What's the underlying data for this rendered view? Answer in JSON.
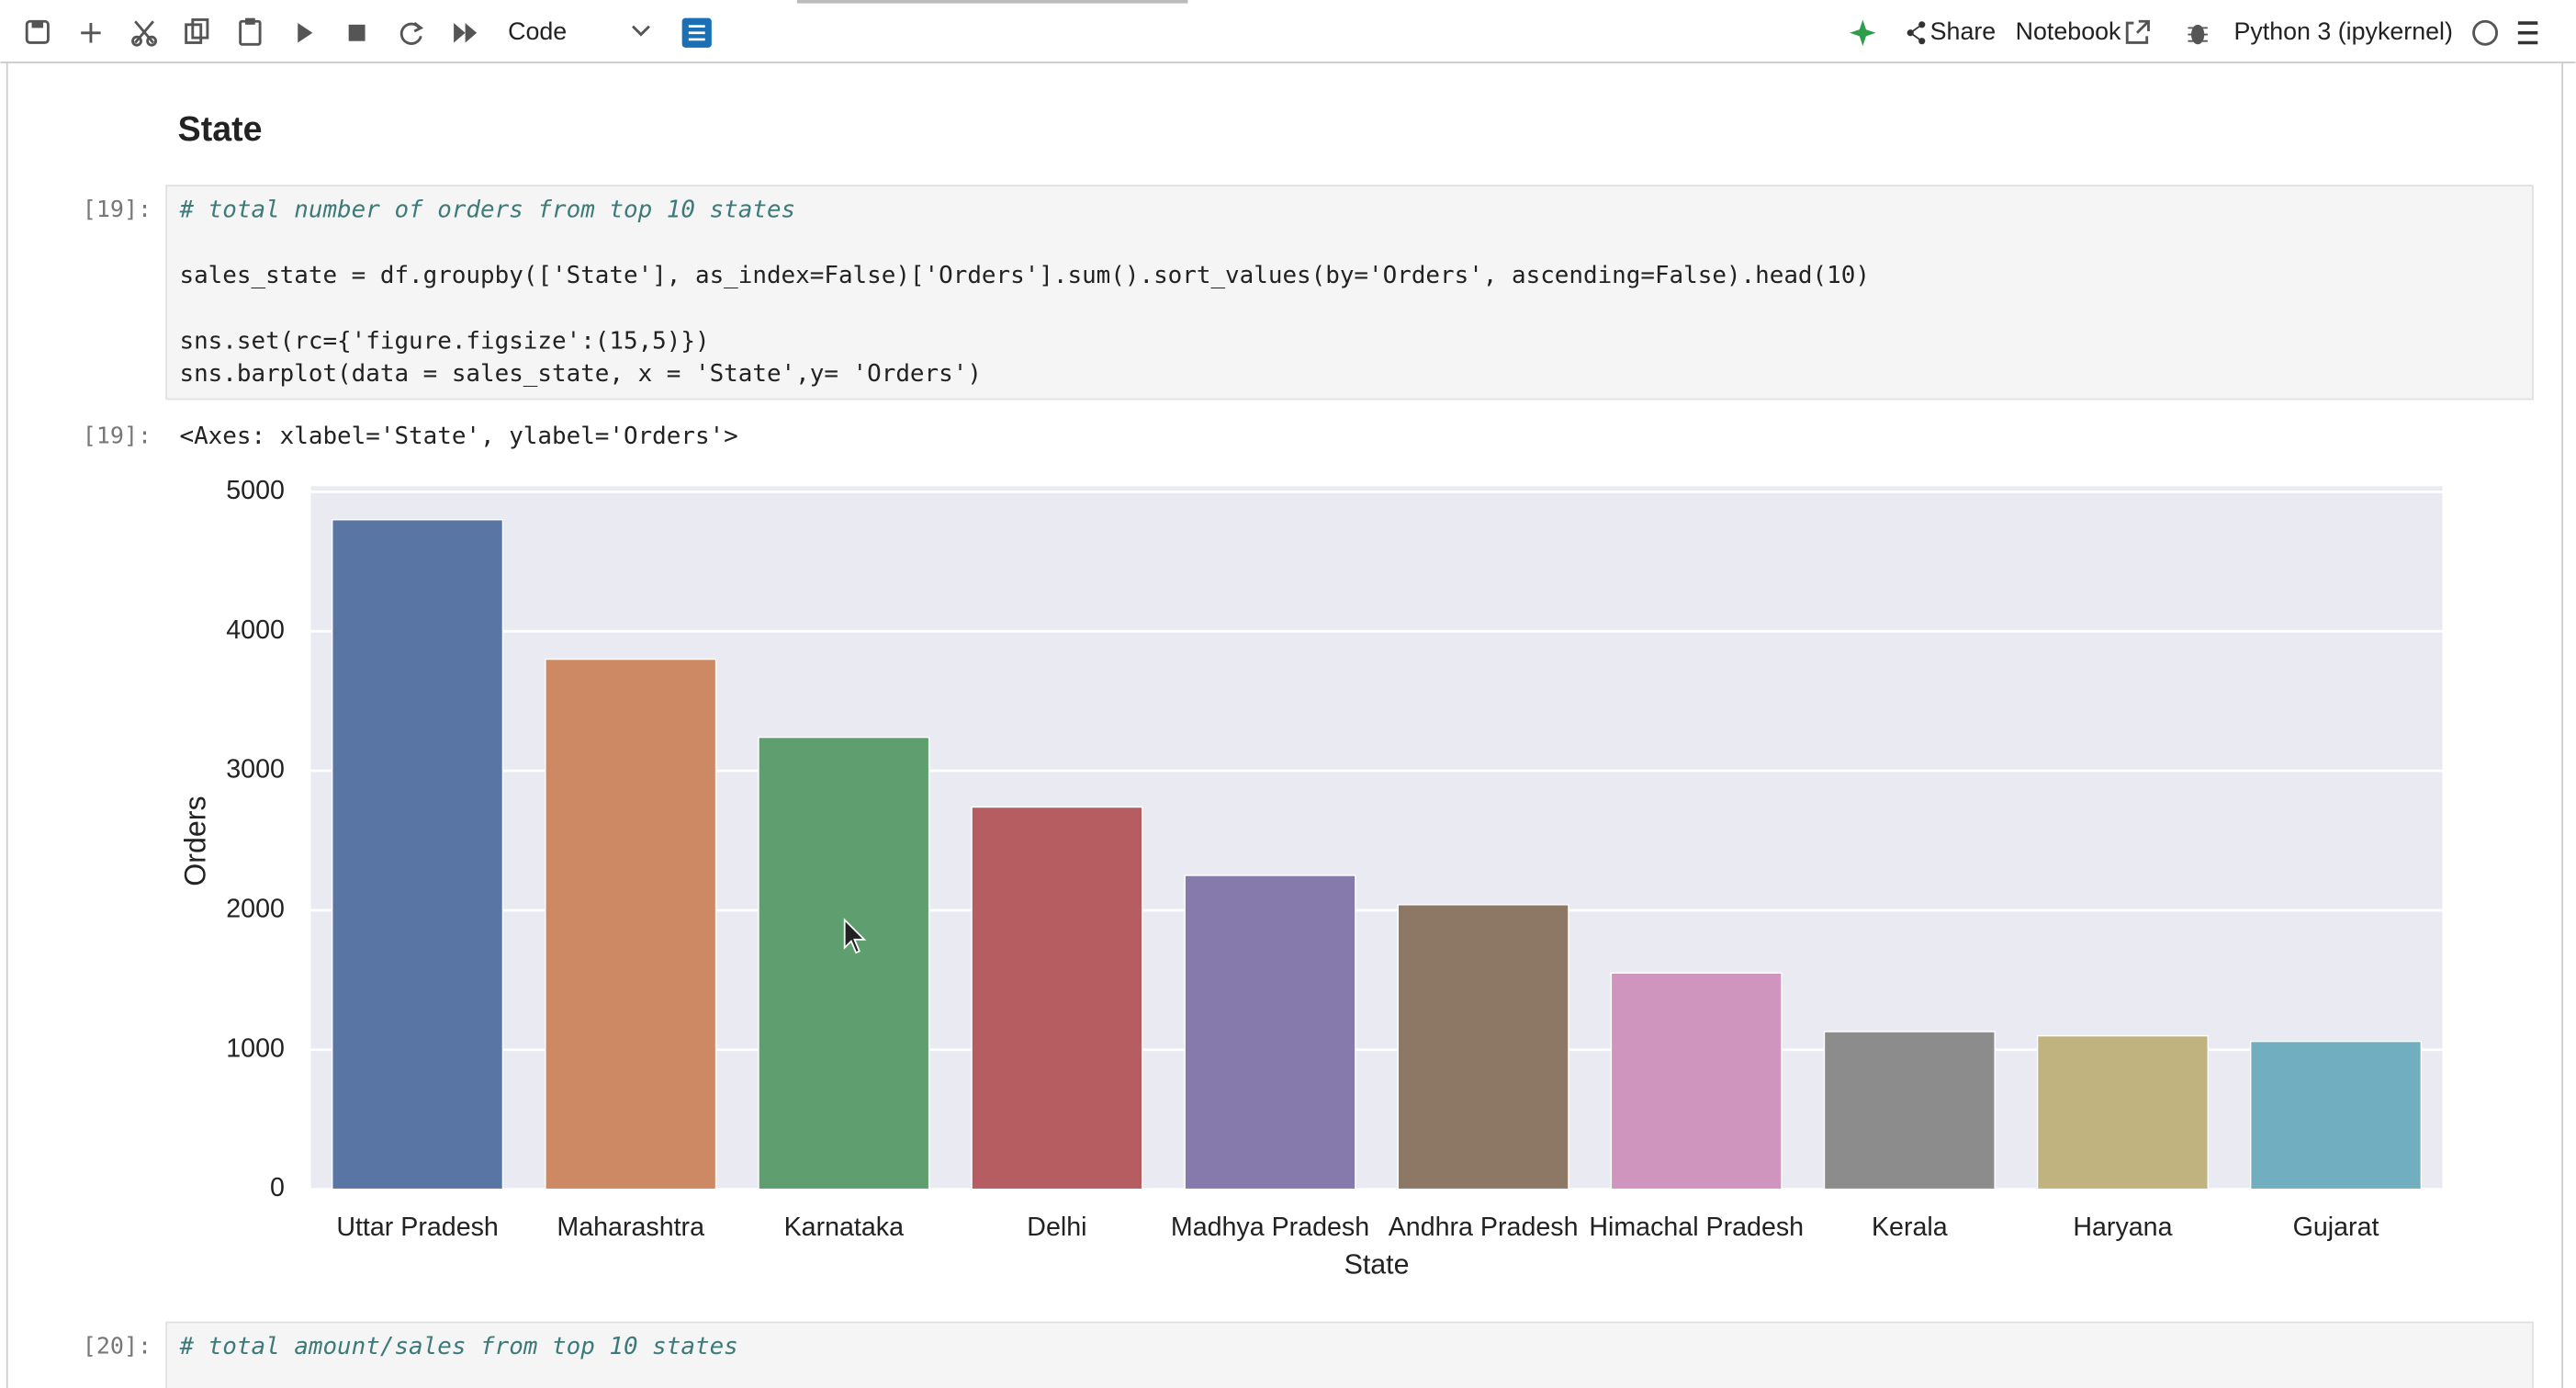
{
  "toolbar": {
    "cell_type": "Code",
    "share": "Share",
    "notebook": "Notebook",
    "kernel": "Python 3 (ipykernel)"
  },
  "heading": "State",
  "cells": [
    {
      "prompt": "[19]:",
      "code": [
        "# total number of orders from top 10 states",
        "sales_state = df.groupby(['State'], as_index=False)['Orders'].sum().sort_values(by='Orders', ascending=False).head(10)",
        "sns.set(rc={'figure.figsize':(15,5)})",
        "sns.barplot(data = sales_state, x = 'State',y= 'Orders')"
      ],
      "output_prompt": "[19]:",
      "output": "<Axes: xlabel='State', ylabel='Orders'>"
    },
    {
      "prompt": "[20]:",
      "code": [
        "# total amount/sales from top 10 states"
      ]
    }
  ],
  "chart_data": {
    "type": "bar",
    "xlabel": "State",
    "ylabel": "Orders",
    "categories": [
      "Uttar Pradesh",
      "Maharashtra",
      "Karnataka",
      "Delhi",
      "Madhya Pradesh",
      "Andhra Pradesh",
      "Himachal Pradesh",
      "Kerala",
      "Haryana",
      "Gujarat"
    ],
    "values": [
      4800,
      3800,
      3240,
      2740,
      2250,
      2040,
      1550,
      1130,
      1100,
      1060
    ],
    "colors": [
      "#5975a4",
      "#cc8963",
      "#5f9e6e",
      "#b55d60",
      "#857aab",
      "#8d7866",
      "#d095bf",
      "#8c8c8c",
      "#c1b37f",
      "#71aec0"
    ],
    "ylim": [
      0,
      5040
    ],
    "yticks": [
      0,
      1000,
      2000,
      3000,
      4000,
      5000
    ],
    "grid": true
  }
}
